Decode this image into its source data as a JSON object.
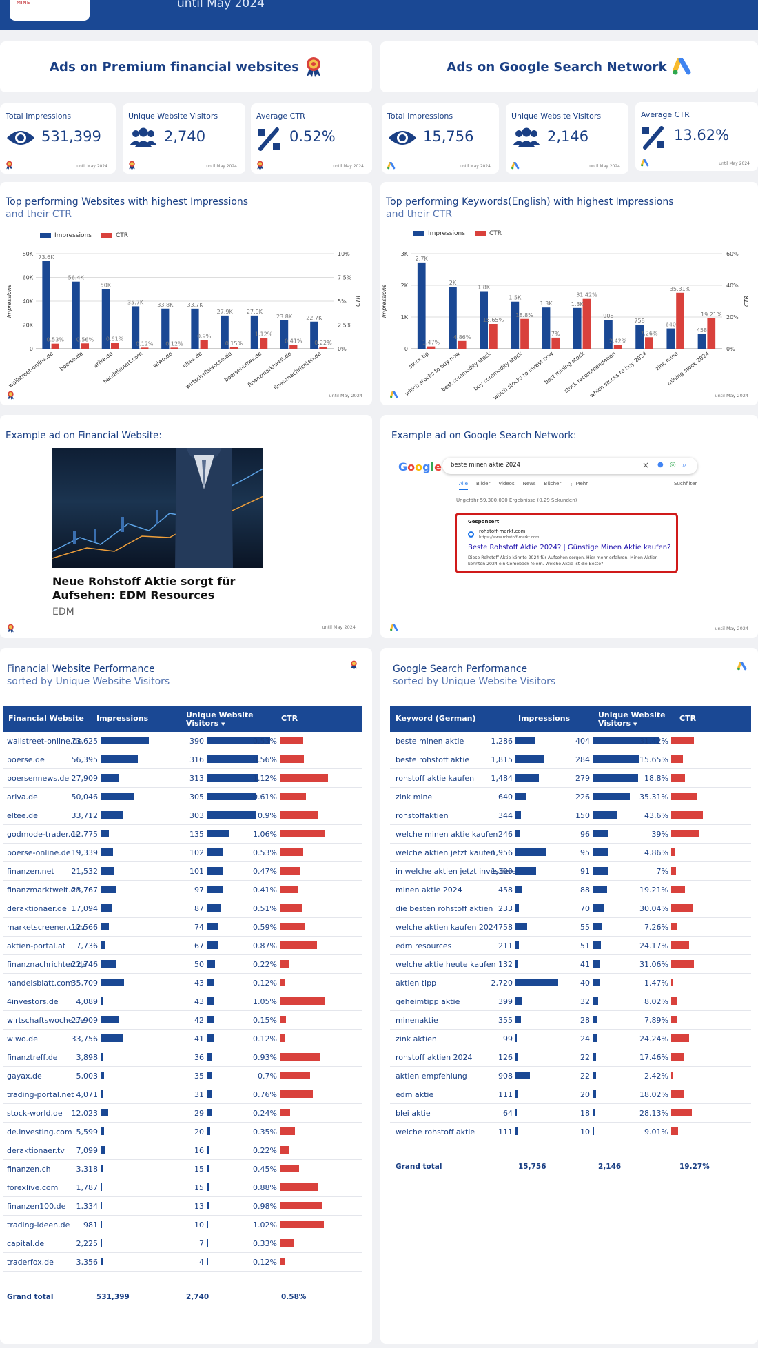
{
  "header": {
    "logo_text": "EXPLORE • DEVELOP • MINE",
    "subtitle": "until May 2024"
  },
  "colors": {
    "navy": "#1a4894",
    "red": "#d9413c"
  },
  "banners": [
    {
      "label": "Ads on Premium financial websites",
      "icon": "award-ribbon-icon"
    },
    {
      "label": "Ads on Google Search Network",
      "icon": "google-ads-icon"
    }
  ],
  "kpis": [
    {
      "label": "Total Impressions",
      "value": "531,399",
      "icon": "eye-icon",
      "date": "until May 2024"
    },
    {
      "label": "Unique Website Visitors",
      "value": "2,740",
      "icon": "users-icon",
      "date": "until May 2024"
    },
    {
      "label": "Average CTR",
      "value": "0.52%",
      "icon": "percent-icon",
      "date": "until May 2024"
    },
    {
      "label": "Total Impressions",
      "value": "15,756",
      "icon": "eye-icon",
      "date": "until May 2024"
    },
    {
      "label": "Unique Website Visitors",
      "value": "2,146",
      "icon": "users-icon",
      "date": "until May 2024"
    },
    {
      "label": "Average CTR",
      "value": "13.62%",
      "icon": "percent-icon",
      "date": "until May 2024"
    }
  ],
  "chart1": {
    "title": "Top performing Websites with highest Impressions",
    "subtitle": "and their CTR",
    "date": "until May 2024"
  },
  "chart2": {
    "title": "Top performing Keywords(English) with highest Impressions",
    "subtitle": "and their CTR",
    "date": "until May 2024"
  },
  "chart_data": [
    {
      "type": "bar",
      "title": "Top performing Websites with highest Impressions and their CTR",
      "ylabel": "Impressions",
      "y2label": "CTR",
      "ylim": [
        0,
        80000
      ],
      "y2lim": [
        0,
        10
      ],
      "legend": "top-left",
      "yticks": [
        "0",
        "20K",
        "40K",
        "60K",
        "80K"
      ],
      "y2ticks": [
        "0%",
        "2.5%",
        "5%",
        "7.5%",
        "10%"
      ],
      "categories": [
        "wallstreet-online.de",
        "boerse.de",
        "ariva.de",
        "handelsblatt.com",
        "wiwo.de",
        "eltee.de",
        "wirtschaftswoche.de",
        "boersennews.de",
        "finanzmarktwelt.de",
        "finanznachrichten.de"
      ],
      "series": [
        {
          "name": "Impressions",
          "values": [
            73625,
            56395,
            50046,
            35709,
            33756,
            33712,
            27909,
            27909,
            23767,
            22746
          ],
          "labels": [
            "73.6K",
            "56.4K",
            "50K",
            "35.7K",
            "33.8K",
            "33.7K",
            "27.9K",
            "27.9K",
            "23.8K",
            "22.7K"
          ]
        },
        {
          "name": "CTR",
          "values": [
            0.53,
            0.56,
            0.61,
            0.12,
            0.12,
            0.9,
            0.15,
            1.12,
            0.41,
            0.22
          ],
          "labels": [
            "0.53%",
            "0.56%",
            "0.61%",
            "0.12%",
            "0.12%",
            "0.9%",
            "0.15%",
            "1.12%",
            "0.41%",
            "0.22%"
          ]
        }
      ]
    },
    {
      "type": "bar",
      "title": "Top performing Keywords(English) with highest Impressions and their CTR",
      "ylabel": "Impressions",
      "y2label": "CTR",
      "ylim": [
        0,
        3000
      ],
      "y2lim": [
        0,
        60
      ],
      "legend": "top-left",
      "yticks": [
        "0",
        "1K",
        "2K",
        "3K"
      ],
      "y2ticks": [
        "0%",
        "20%",
        "40%",
        "60%"
      ],
      "categories": [
        "stock tip",
        "which stocks to buy now",
        "best commodity stock",
        "buy commodity stock",
        "which stocks to invest now",
        "best mining stock",
        "stock recommendation",
        "which stocks to buy 2024",
        "zinc mine",
        "mining stock 2024"
      ],
      "series": [
        {
          "name": "Impressions",
          "values": [
            2720,
            1956,
            1815,
            1484,
            1300,
            1286,
            908,
            758,
            640,
            458
          ],
          "labels": [
            "2.7K",
            "2K",
            "1.8K",
            "1.5K",
            "1.3K",
            "1.3K",
            "908",
            "758",
            "640",
            "458"
          ]
        },
        {
          "name": "CTR",
          "values": [
            1.47,
            4.86,
            15.65,
            18.8,
            7,
            31.42,
            2.42,
            7.26,
            35.31,
            19.21
          ],
          "labels": [
            "1.47%",
            "4.86%",
            "15.65%",
            "18.8%",
            "7%",
            "31.42%",
            "2.42%",
            "7.26%",
            "35.31%",
            "19.21%"
          ]
        }
      ]
    }
  ],
  "example1": {
    "title": "Example ad on Financial Website:",
    "headline": "Neue Rohstoff Aktie sorgt für Aufsehen: EDM Resources",
    "source": "EDM",
    "date": "until May 2024"
  },
  "example2": {
    "title": "Example ad on Google Search Network:",
    "query": "beste minen aktie 2024",
    "tabs": [
      "Alle",
      "Bilder",
      "Videos",
      "News",
      "Bücher",
      "⋮ Mehr"
    ],
    "tools": "Suchfilter",
    "results": "Ungefähr 59.300.000 Ergebnisse (0,29 Sekunden)",
    "sponsored": "Gesponsert",
    "site": "rohstoff-markt.com",
    "url": "https://www.rohstoff-markt.com",
    "ad_title": "Beste Rohstoff Aktie 2024? | Günstige Minen Aktie kaufen?",
    "ad_desc": "Diese Rohstoff Aktie könnte 2024 für Aufsehen sorgen. Hier mehr erfahren. Minen Aktien könnten 2024 ein Comeback feiern. Welche Aktie ist die Beste?",
    "date": "until May 2024"
  },
  "table1": {
    "title": "Financial Website Performance",
    "subtitle": "sorted by Unique Website Visitors",
    "headers": [
      "Financial Website",
      "Impressions",
      "Unique Website Visitors",
      "CTR"
    ],
    "rows": [
      [
        "wallstreet-online.de",
        "73,625",
        "390",
        "0.53%"
      ],
      [
        "boerse.de",
        "56,395",
        "316",
        "0.56%"
      ],
      [
        "boersennews.de",
        "27,909",
        "313",
        "1.12%"
      ],
      [
        "ariva.de",
        "50,046",
        "305",
        "0.61%"
      ],
      [
        "eltee.de",
        "33,712",
        "303",
        "0.9%"
      ],
      [
        "godmode-trader.de",
        "12,775",
        "135",
        "1.06%"
      ],
      [
        "boerse-online.de",
        "19,339",
        "102",
        "0.53%"
      ],
      [
        "finanzen.net",
        "21,532",
        "101",
        "0.47%"
      ],
      [
        "finanzmarktwelt.de",
        "23,767",
        "97",
        "0.41%"
      ],
      [
        "deraktionaer.de",
        "17,094",
        "87",
        "0.51%"
      ],
      [
        "marketscreener.com",
        "12,566",
        "74",
        "0.59%"
      ],
      [
        "aktien-portal.at",
        "7,736",
        "67",
        "0.87%"
      ],
      [
        "finanznachrichten.de",
        "22,746",
        "50",
        "0.22%"
      ],
      [
        "handelsblatt.com",
        "35,709",
        "43",
        "0.12%"
      ],
      [
        "4investors.de",
        "4,089",
        "43",
        "1.05%"
      ],
      [
        "wirtschaftswoche.de",
        "27,909",
        "42",
        "0.15%"
      ],
      [
        "wiwo.de",
        "33,756",
        "41",
        "0.12%"
      ],
      [
        "finanztreff.de",
        "3,898",
        "36",
        "0.93%"
      ],
      [
        "gayax.de",
        "5,003",
        "35",
        "0.7%"
      ],
      [
        "trading-portal.net",
        "4,071",
        "31",
        "0.76%"
      ],
      [
        "stock-world.de",
        "12,023",
        "29",
        "0.24%"
      ],
      [
        "de.investing.com",
        "5,599",
        "20",
        "0.35%"
      ],
      [
        "deraktionaer.tv",
        "7,099",
        "16",
        "0.22%"
      ],
      [
        "finanzen.ch",
        "3,318",
        "15",
        "0.45%"
      ],
      [
        "forexlive.com",
        "1,787",
        "15",
        "0.88%"
      ],
      [
        "finanzen100.de",
        "1,334",
        "13",
        "0.98%"
      ],
      [
        "trading-ideen.de",
        "981",
        "10",
        "1.02%"
      ],
      [
        "capital.de",
        "2,225",
        "7",
        "0.33%"
      ],
      [
        "traderfox.de",
        "3,356",
        "4",
        "0.12%"
      ]
    ],
    "total": [
      "Grand total",
      "531,399",
      "2,740",
      "0.58%"
    ]
  },
  "table2": {
    "title": "Google Search Performance",
    "subtitle": "sorted by Unique Website Visitors",
    "headers": [
      "Keyword (German)",
      "Impressions",
      "Unique Website Visitors",
      "CTR"
    ],
    "rows": [
      [
        "beste minen aktie",
        "1,286",
        "404",
        "31.42%"
      ],
      [
        "beste rohstoff aktie",
        "1,815",
        "284",
        "15.65%"
      ],
      [
        "rohstoff aktie kaufen",
        "1,484",
        "279",
        "18.8%"
      ],
      [
        "zink mine",
        "640",
        "226",
        "35.31%"
      ],
      [
        "rohstoffaktien",
        "344",
        "150",
        "43.6%"
      ],
      [
        "welche minen aktie kaufen",
        "246",
        "96",
        "39%"
      ],
      [
        "welche aktien jetzt kaufen",
        "1,956",
        "95",
        "4.86%"
      ],
      [
        "in welche aktien jetzt investieren",
        "1,300",
        "91",
        "7%"
      ],
      [
        "minen aktie 2024",
        "458",
        "88",
        "19.21%"
      ],
      [
        "die besten rohstoff aktien",
        "233",
        "70",
        "30.04%"
      ],
      [
        "welche aktien kaufen 2024",
        "758",
        "55",
        "7.26%"
      ],
      [
        "edm resources",
        "211",
        "51",
        "24.17%"
      ],
      [
        "welche aktie heute kaufen",
        "132",
        "41",
        "31.06%"
      ],
      [
        "aktien tipp",
        "2,720",
        "40",
        "1.47%"
      ],
      [
        "geheimtipp aktie",
        "399",
        "32",
        "8.02%"
      ],
      [
        "minenaktie",
        "355",
        "28",
        "7.89%"
      ],
      [
        "zink aktien",
        "99",
        "24",
        "24.24%"
      ],
      [
        "rohstoff aktien 2024",
        "126",
        "22",
        "17.46%"
      ],
      [
        "aktien empfehlung",
        "908",
        "22",
        "2.42%"
      ],
      [
        "edm aktie",
        "111",
        "20",
        "18.02%"
      ],
      [
        "blei aktie",
        "64",
        "18",
        "28.13%"
      ],
      [
        "welche rohstoff aktie",
        "111",
        "10",
        "9.01%"
      ]
    ],
    "total": [
      "Grand total",
      "15,756",
      "2,146",
      "19.27%"
    ]
  }
}
